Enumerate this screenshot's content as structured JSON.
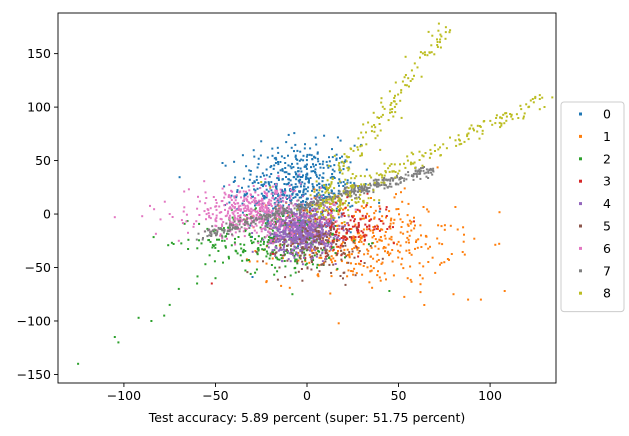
{
  "chart_data": {
    "type": "scatter",
    "title": "",
    "xlabel": "Test accuracy: 5.89 percent (super: 51.75 percent)",
    "ylabel": "",
    "xlim": [
      -136,
      136
    ],
    "ylim": [
      -158,
      188
    ],
    "xticks": [
      -100,
      -50,
      0,
      50,
      100
    ],
    "yticks": [
      -150,
      -100,
      -50,
      0,
      50,
      100,
      150
    ],
    "grid": false,
    "legend_position": "right",
    "series": [
      {
        "name": "0",
        "color": "#1f77b4",
        "cluster": {
          "type": "blob",
          "cx": -5,
          "cy": 25,
          "sx": 16,
          "sy": 20,
          "n": 520
        },
        "points": [
          [
            -25,
            68
          ],
          [
            -10,
            74
          ],
          [
            -35,
            55
          ],
          [
            5,
            65
          ],
          [
            15,
            40
          ],
          [
            -40,
            30
          ],
          [
            20,
            30
          ]
        ]
      },
      {
        "name": "1",
        "color": "#ff7f0e",
        "cluster": {
          "type": "blob",
          "cx": 30,
          "cy": -25,
          "sx": 25,
          "sy": 20,
          "n": 380
        },
        "points": [
          [
            70,
            -55
          ],
          [
            80,
            -75
          ],
          [
            88,
            -80
          ],
          [
            95,
            -80
          ],
          [
            108,
            -72
          ],
          [
            75,
            -45
          ],
          [
            55,
            -60
          ],
          [
            62,
            -73
          ]
        ]
      },
      {
        "name": "2",
        "color": "#2ca02c",
        "cluster": {
          "type": "blob",
          "cx": -15,
          "cy": -25,
          "sx": 22,
          "sy": 14,
          "n": 320
        },
        "points": [
          [
            -125,
            -140
          ],
          [
            -105,
            -115
          ],
          [
            -103,
            -120
          ],
          [
            -92,
            -97
          ],
          [
            -85,
            -100
          ],
          [
            -78,
            -95
          ],
          [
            -75,
            -85
          ],
          [
            -70,
            -70
          ],
          [
            -60,
            -65
          ],
          [
            -50,
            -60
          ],
          [
            -8,
            -75
          ],
          [
            45,
            -72
          ],
          [
            -45,
            -25
          ],
          [
            -35,
            -35
          ]
        ]
      },
      {
        "name": "3",
        "color": "#d62728",
        "cluster": {
          "type": "blob",
          "cx": 20,
          "cy": -12,
          "sx": 12,
          "sy": 12,
          "n": 170
        },
        "points": [
          [
            -52,
            -65
          ],
          [
            45,
            -12
          ],
          [
            35,
            -5
          ]
        ]
      },
      {
        "name": "4",
        "color": "#9467bd",
        "cluster": {
          "type": "blob",
          "cx": -3,
          "cy": -15,
          "sx": 9,
          "sy": 11,
          "n": 700
        },
        "points": [
          [
            10,
            -30
          ],
          [
            -20,
            -20
          ],
          [
            5,
            0
          ]
        ]
      },
      {
        "name": "5",
        "color": "#8c564b",
        "cluster": {
          "type": "blob",
          "cx": 5,
          "cy": -30,
          "sx": 14,
          "sy": 14,
          "n": 150
        },
        "points": [
          [
            -15,
            -50
          ],
          [
            20,
            -55
          ]
        ]
      },
      {
        "name": "6",
        "color": "#e377c2",
        "cluster": {
          "type": "blob",
          "cx": -28,
          "cy": 2,
          "sx": 18,
          "sy": 12,
          "n": 480
        },
        "points": [
          [
            -105,
            -3
          ],
          [
            -90,
            -2
          ],
          [
            -80,
            -5
          ],
          [
            -75,
            0
          ],
          [
            -70,
            -25
          ],
          [
            -60,
            5
          ],
          [
            -55,
            15
          ],
          [
            -50,
            -5
          ],
          [
            -45,
            20
          ]
        ]
      },
      {
        "name": "7",
        "color": "#7f7f7f",
        "cluster": {
          "type": "line",
          "x0": -60,
          "y0": -22,
          "x1": 68,
          "y1": 42,
          "jitter": 2.5,
          "n": 420
        },
        "points": []
      },
      {
        "name": "8",
        "color": "#bcbd22",
        "cluster": {
          "type": "rays",
          "rays": [
            [
              5,
              8,
              77,
              176,
              150
            ],
            [
              5,
              8,
              130,
              108,
              160
            ],
            [
              0,
              0,
              35,
              15,
              60
            ]
          ],
          "jitter": 3
        },
        "points": [
          [
            20,
            45
          ],
          [
            30,
            55
          ],
          [
            40,
            60
          ],
          [
            -20,
            25
          ],
          [
            -25,
            30
          ],
          [
            10,
            20
          ]
        ]
      }
    ]
  }
}
